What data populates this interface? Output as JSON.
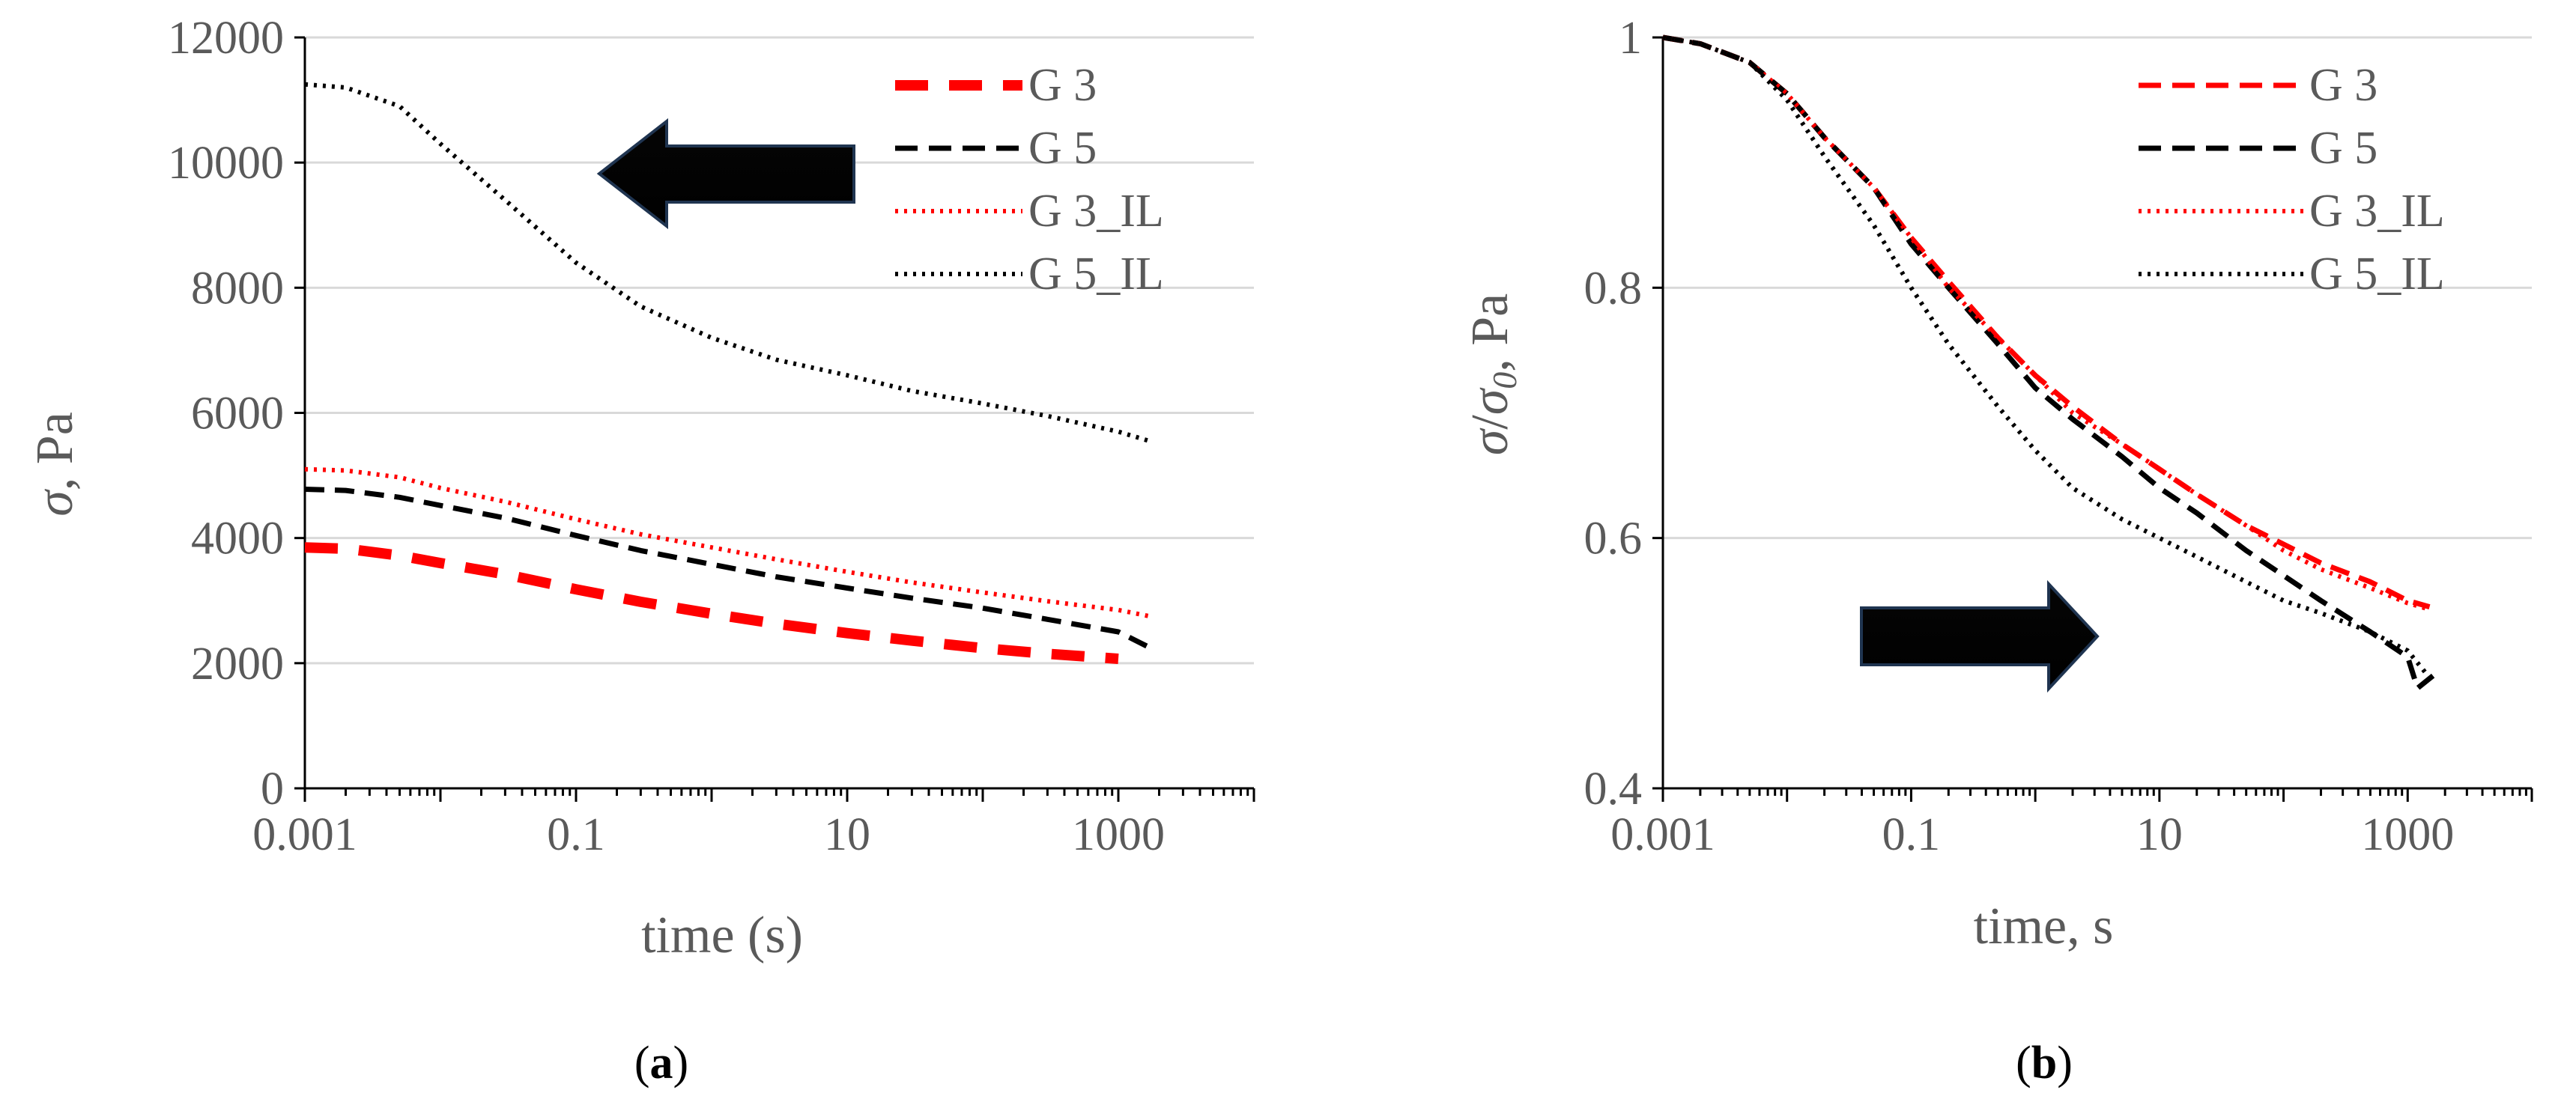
{
  "chart_data": [
    {
      "type": "line",
      "panel": "a",
      "caption_letter": "a",
      "xscale": "log",
      "xlabel": "time (s)",
      "ylabel_symbol": "σ",
      "ylabel_unit": ", Pa",
      "xlim": [
        0.001,
        10000
      ],
      "ylim": [
        0,
        12000
      ],
      "xticks": [
        0.001,
        0.1,
        10,
        1000
      ],
      "xtick_labels": [
        "0.001",
        "0.1",
        "10",
        "1000"
      ],
      "yticks": [
        0,
        2000,
        4000,
        6000,
        8000,
        10000,
        12000
      ],
      "ytick_labels": [
        "0",
        "2000",
        "4000",
        "6000",
        "8000",
        "10000",
        "12000"
      ],
      "gridlines": "horizontal",
      "legend_position": "top-right",
      "arrow_direction": "left",
      "series": [
        {
          "name": "G 3",
          "color": "#ff0000",
          "style": "long-dash-thick",
          "x": [
            0.001,
            0.002,
            0.005,
            0.01,
            0.03,
            0.1,
            0.3,
            1,
            3,
            10,
            30,
            100,
            300,
            1000
          ],
          "y": [
            3850,
            3830,
            3720,
            3600,
            3420,
            3180,
            2980,
            2790,
            2630,
            2480,
            2360,
            2240,
            2150,
            2070
          ]
        },
        {
          "name": "G 5",
          "color": "#000000",
          "style": "dashed",
          "x": [
            0.001,
            0.002,
            0.005,
            0.01,
            0.03,
            0.1,
            0.3,
            1,
            3,
            10,
            30,
            100,
            300,
            1000,
            1700
          ],
          "y": [
            4780,
            4760,
            4650,
            4520,
            4320,
            4040,
            3800,
            3580,
            3380,
            3200,
            3040,
            2880,
            2700,
            2500,
            2250
          ]
        },
        {
          "name": "G 3_IL",
          "color": "#ff0000",
          "style": "dotted",
          "x": [
            0.001,
            0.002,
            0.005,
            0.01,
            0.03,
            0.1,
            0.3,
            1,
            3,
            10,
            30,
            100,
            300,
            1000,
            1700
          ],
          "y": [
            5100,
            5080,
            4970,
            4800,
            4580,
            4300,
            4060,
            3850,
            3660,
            3460,
            3290,
            3130,
            2990,
            2850,
            2750
          ]
        },
        {
          "name": "G 5_IL",
          "color": "#000000",
          "style": "dotted",
          "x": [
            0.001,
            0.002,
            0.005,
            0.01,
            0.03,
            0.1,
            0.3,
            1,
            3,
            10,
            30,
            100,
            300,
            1000,
            1700
          ],
          "y": [
            11250,
            11200,
            10900,
            10300,
            9400,
            8400,
            7700,
            7200,
            6850,
            6600,
            6350,
            6150,
            5950,
            5700,
            5550
          ]
        }
      ]
    },
    {
      "type": "line",
      "panel": "b",
      "caption_letter": "b",
      "xscale": "log",
      "xlabel": "time, s",
      "ylabel_symbol": "σ",
      "ylabel_sep": "/",
      "ylabel_sub_base": "σ",
      "ylabel_sub": "0",
      "ylabel_unit": ", Pa",
      "xlim": [
        0.001,
        10000
      ],
      "ylim": [
        0.4,
        1.0
      ],
      "xticks": [
        0.001,
        0.1,
        10,
        1000
      ],
      "xtick_labels": [
        "0.001",
        "0.1",
        "10",
        "1000"
      ],
      "yticks": [
        0.4,
        0.6,
        0.8,
        1.0
      ],
      "ytick_labels": [
        "0.4",
        "0.6",
        "0.8",
        "1"
      ],
      "gridlines": "horizontal",
      "legend_position": "top-right",
      "arrow_direction": "right",
      "series": [
        {
          "name": "G 3",
          "color": "#ff0000",
          "style": "dashed",
          "x": [
            0.001,
            0.002,
            0.005,
            0.01,
            0.02,
            0.05,
            0.1,
            0.2,
            0.5,
            1,
            2,
            5,
            10,
            20,
            50,
            100,
            200,
            500,
            1000,
            1500
          ],
          "y": [
            1.0,
            0.995,
            0.98,
            0.955,
            0.92,
            0.88,
            0.84,
            0.805,
            0.76,
            0.73,
            0.705,
            0.675,
            0.655,
            0.635,
            0.61,
            0.595,
            0.58,
            0.565,
            0.55,
            0.545
          ]
        },
        {
          "name": "G 5",
          "color": "#000000",
          "style": "dashed",
          "x": [
            0.001,
            0.002,
            0.005,
            0.01,
            0.02,
            0.05,
            0.1,
            0.2,
            0.5,
            1,
            2,
            5,
            10,
            20,
            50,
            100,
            200,
            500,
            1000,
            1200,
            1600
          ],
          "y": [
            1.0,
            0.995,
            0.98,
            0.955,
            0.92,
            0.88,
            0.835,
            0.8,
            0.755,
            0.72,
            0.695,
            0.665,
            0.64,
            0.62,
            0.59,
            0.57,
            0.55,
            0.525,
            0.505,
            0.48,
            0.49
          ]
        },
        {
          "name": "G 3_IL",
          "color": "#ff0000",
          "style": "dotted",
          "x": [
            0.001,
            0.002,
            0.005,
            0.01,
            0.02,
            0.05,
            0.1,
            0.2,
            0.5,
            1,
            2,
            5,
            10,
            20,
            50,
            100,
            200,
            500,
            1000,
            1500
          ],
          "y": [
            1.0,
            0.995,
            0.98,
            0.955,
            0.92,
            0.88,
            0.84,
            0.8,
            0.76,
            0.73,
            0.7,
            0.675,
            0.655,
            0.635,
            0.61,
            0.59,
            0.575,
            0.56,
            0.548,
            0.543
          ]
        },
        {
          "name": "G 5_IL",
          "color": "#000000",
          "style": "dotted",
          "x": [
            0.001,
            0.002,
            0.005,
            0.01,
            0.02,
            0.05,
            0.1,
            0.2,
            0.5,
            1,
            2,
            5,
            10,
            20,
            50,
            100,
            200,
            500,
            1000,
            1600
          ],
          "y": [
            1.0,
            0.995,
            0.98,
            0.95,
            0.905,
            0.85,
            0.8,
            0.755,
            0.705,
            0.67,
            0.64,
            0.615,
            0.6,
            0.585,
            0.565,
            0.55,
            0.54,
            0.525,
            0.51,
            0.485
          ]
        }
      ]
    }
  ]
}
